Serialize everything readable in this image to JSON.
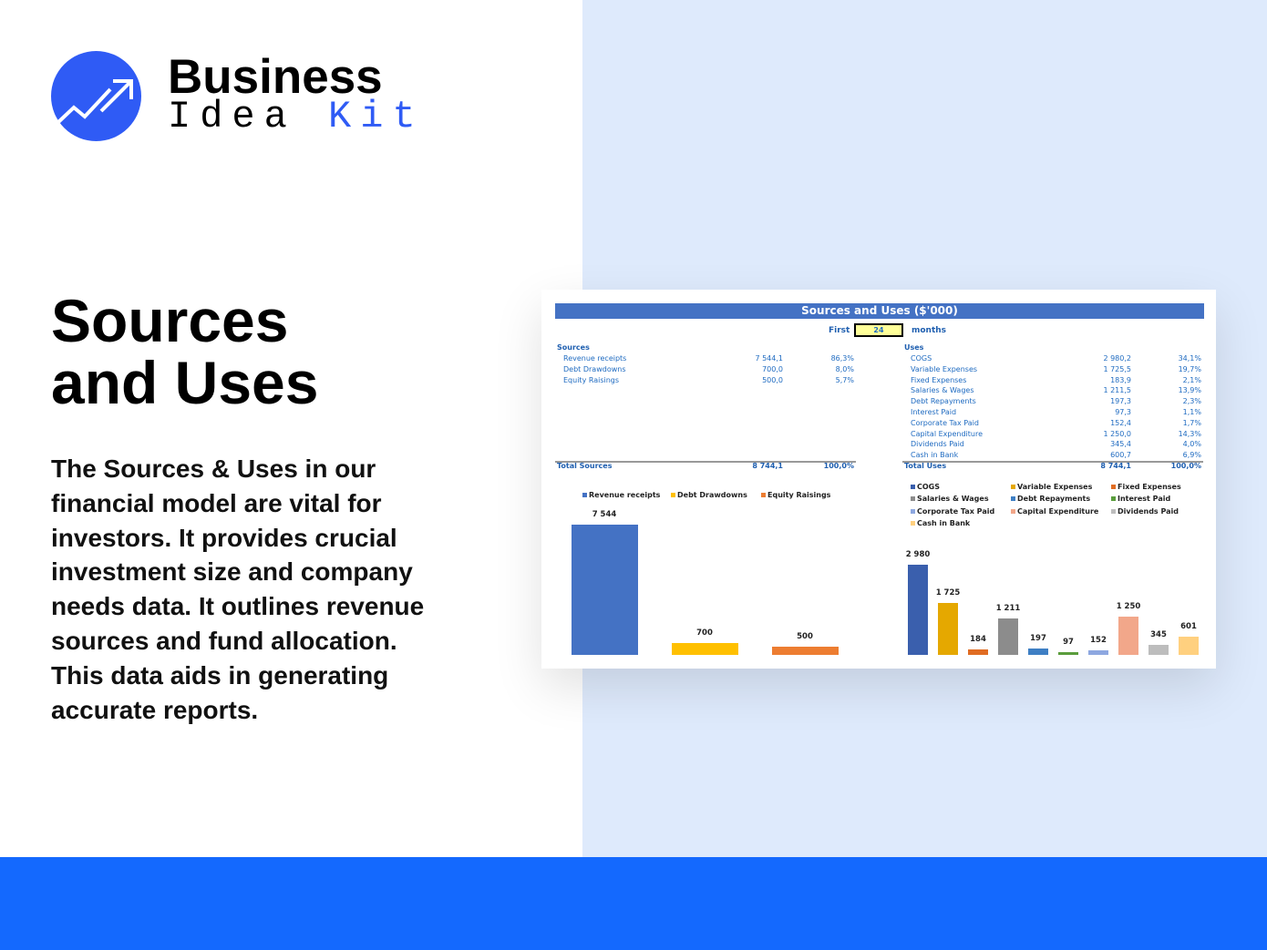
{
  "logo": {
    "line1": "Business",
    "line2a": "Idea ",
    "line2b": "Kit",
    "brand_color": "#2f5bf5"
  },
  "title_line1": "Sources",
  "title_line2": "and Uses",
  "description": "The Sources & Uses in our financial model are vital for investors. It provides crucial investment size and company needs data. It outlines revenue sources and fund allocation. This data aids in generating accurate reports.",
  "sheet": {
    "title": "Sources and Uses ($'000)",
    "first_label": "First",
    "first_value": "24",
    "months_label": "months",
    "sources_heading": "Sources",
    "sources": [
      {
        "label": "Revenue receipts",
        "value": "7 544,1",
        "pct": "86,3%"
      },
      {
        "label": "Debt Drawdowns",
        "value": "700,0",
        "pct": "8,0%"
      },
      {
        "label": "Equity Raisings",
        "value": "500,0",
        "pct": "5,7%"
      }
    ],
    "total_sources": {
      "label": "Total Sources",
      "value": "8 744,1",
      "pct": "100,0%"
    },
    "uses_heading": "Uses",
    "uses": [
      {
        "label": "COGS",
        "value": "2 980,2",
        "pct": "34,1%"
      },
      {
        "label": "Variable Expenses",
        "value": "1 725,5",
        "pct": "19,7%"
      },
      {
        "label": "Fixed Expenses",
        "value": "183,9",
        "pct": "2,1%"
      },
      {
        "label": "Salaries & Wages",
        "value": "1 211,5",
        "pct": "13,9%"
      },
      {
        "label": "Debt Repayments",
        "value": "197,3",
        "pct": "2,3%"
      },
      {
        "label": "Interest Paid",
        "value": "97,3",
        "pct": "1,1%"
      },
      {
        "label": "Corporate Tax Paid",
        "value": "152,4",
        "pct": "1,7%"
      },
      {
        "label": "Capital Expenditure",
        "value": "1 250,0",
        "pct": "14,3%"
      },
      {
        "label": "Dividends Paid",
        "value": "345,4",
        "pct": "4,0%"
      },
      {
        "label": "Cash in Bank",
        "value": "600,7",
        "pct": "6,9%"
      }
    ],
    "total_uses": {
      "label": "Total Uses",
      "value": "8 744,1",
      "pct": "100,0%"
    }
  },
  "chart_data": [
    {
      "type": "bar",
      "categories": [
        "Revenue receipts",
        "Debt Drawdowns",
        "Equity Raisings"
      ],
      "values": [
        7544,
        700,
        500
      ],
      "labels": [
        "7 544",
        "700",
        "500"
      ],
      "colors": [
        "#4472c4",
        "#ffc000",
        "#ed7d31"
      ],
      "legend": "top"
    },
    {
      "type": "bar",
      "categories": [
        "COGS",
        "Variable Expenses",
        "Fixed Expenses",
        "Salaries & Wages",
        "Debt Repayments",
        "Interest Paid",
        "Corporate Tax Paid",
        "Capital Expenditure",
        "Dividends Paid",
        "Cash in Bank"
      ],
      "values": [
        2980,
        1725,
        184,
        1211,
        197,
        97,
        152,
        1250,
        345,
        601
      ],
      "labels": [
        "2 980",
        "1 725",
        "184",
        "1 211",
        "197",
        "97",
        "152",
        "1 250",
        "345",
        "601"
      ],
      "colors": [
        "#3a5fad",
        "#e5a800",
        "#e06c22",
        "#8c8c8c",
        "#3e7fc4",
        "#5a9d3c",
        "#8ea8e0",
        "#f2a78a",
        "#bdbdbd",
        "#ffd07f"
      ],
      "legend": "top"
    }
  ]
}
